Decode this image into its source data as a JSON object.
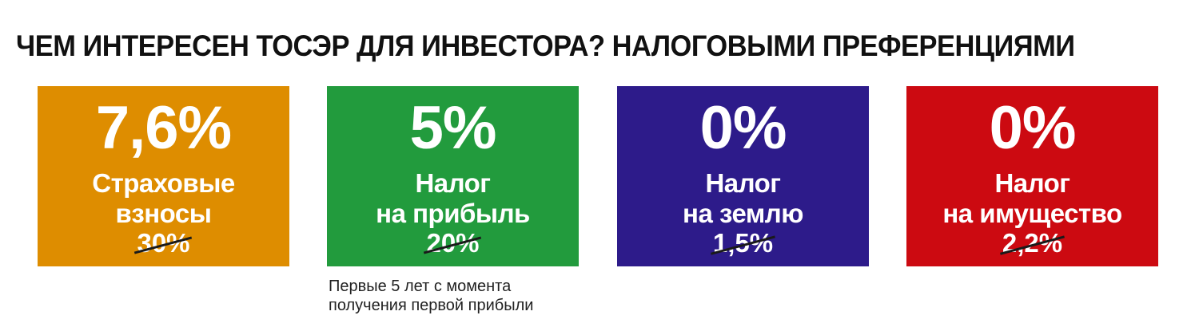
{
  "title": "ЧЕМ ИНТЕРЕСЕН ТОСЭР ДЛЯ ИНВЕСТОРА? НАЛОГОВЫМИ ПРЕФЕРЕНЦИЯМИ",
  "cards": [
    {
      "value": "7,6%",
      "label_line1": "Страховые",
      "label_line2": "взносы",
      "old_value": "30%",
      "color": "#de8d00"
    },
    {
      "value": "5%",
      "label_line1": "Налог",
      "label_line2": "на прибыль",
      "old_value": "20%",
      "color": "#229b3d"
    },
    {
      "value": "0%",
      "label_line1": "Налог",
      "label_line2": "на землю",
      "old_value": "1,5%",
      "color": "#2d1b8a"
    },
    {
      "value": "0%",
      "label_line1": "Налог",
      "label_line2": "на имущество",
      "old_value": "2,2%",
      "color": "#cc0a11"
    }
  ],
  "note": {
    "line1": "Первые 5 лет с момента",
    "line2": "получения первой прибыли"
  }
}
